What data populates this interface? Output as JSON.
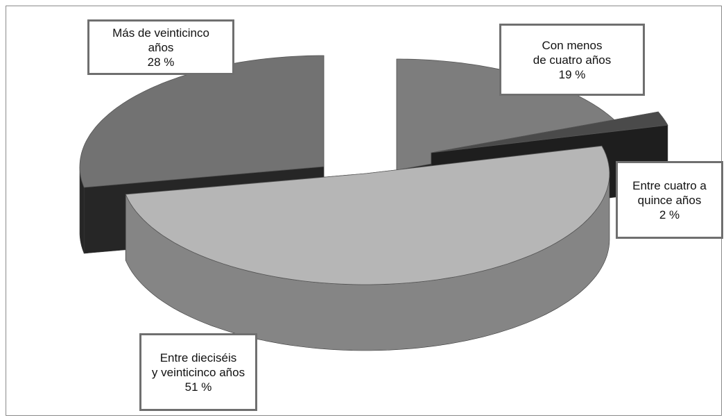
{
  "chart_data": {
    "type": "pie",
    "style": "3d-exploded",
    "title": "",
    "unit": "%",
    "slices": [
      {
        "name": "Con menos de cuatro años",
        "label_lines": [
          "Con menos",
          "de cuatro años",
          "19 %"
        ],
        "value": 19,
        "top_color": "#7d7d7d",
        "side_color": "#262626"
      },
      {
        "name": "Entre cuatro a quince años",
        "label_lines": [
          "Entre cuatro a",
          "quince años",
          "2 %"
        ],
        "value": 2,
        "top_color": "#4a4a4a",
        "side_color": "#1e1e1e"
      },
      {
        "name": "Entre dieciséis y veinticinco años",
        "label_lines": [
          "Entre dieciséis",
          "y veinticinco años",
          "51 %"
        ],
        "value": 51,
        "top_color": "#b6b6b6",
        "side_color": "#858585"
      },
      {
        "name": "Más de veinticinco años",
        "label_lines": [
          "Más de veinticinco",
          "años",
          "28 %"
        ],
        "value": 28,
        "top_color": "#727272",
        "side_color": "#262626"
      }
    ]
  }
}
